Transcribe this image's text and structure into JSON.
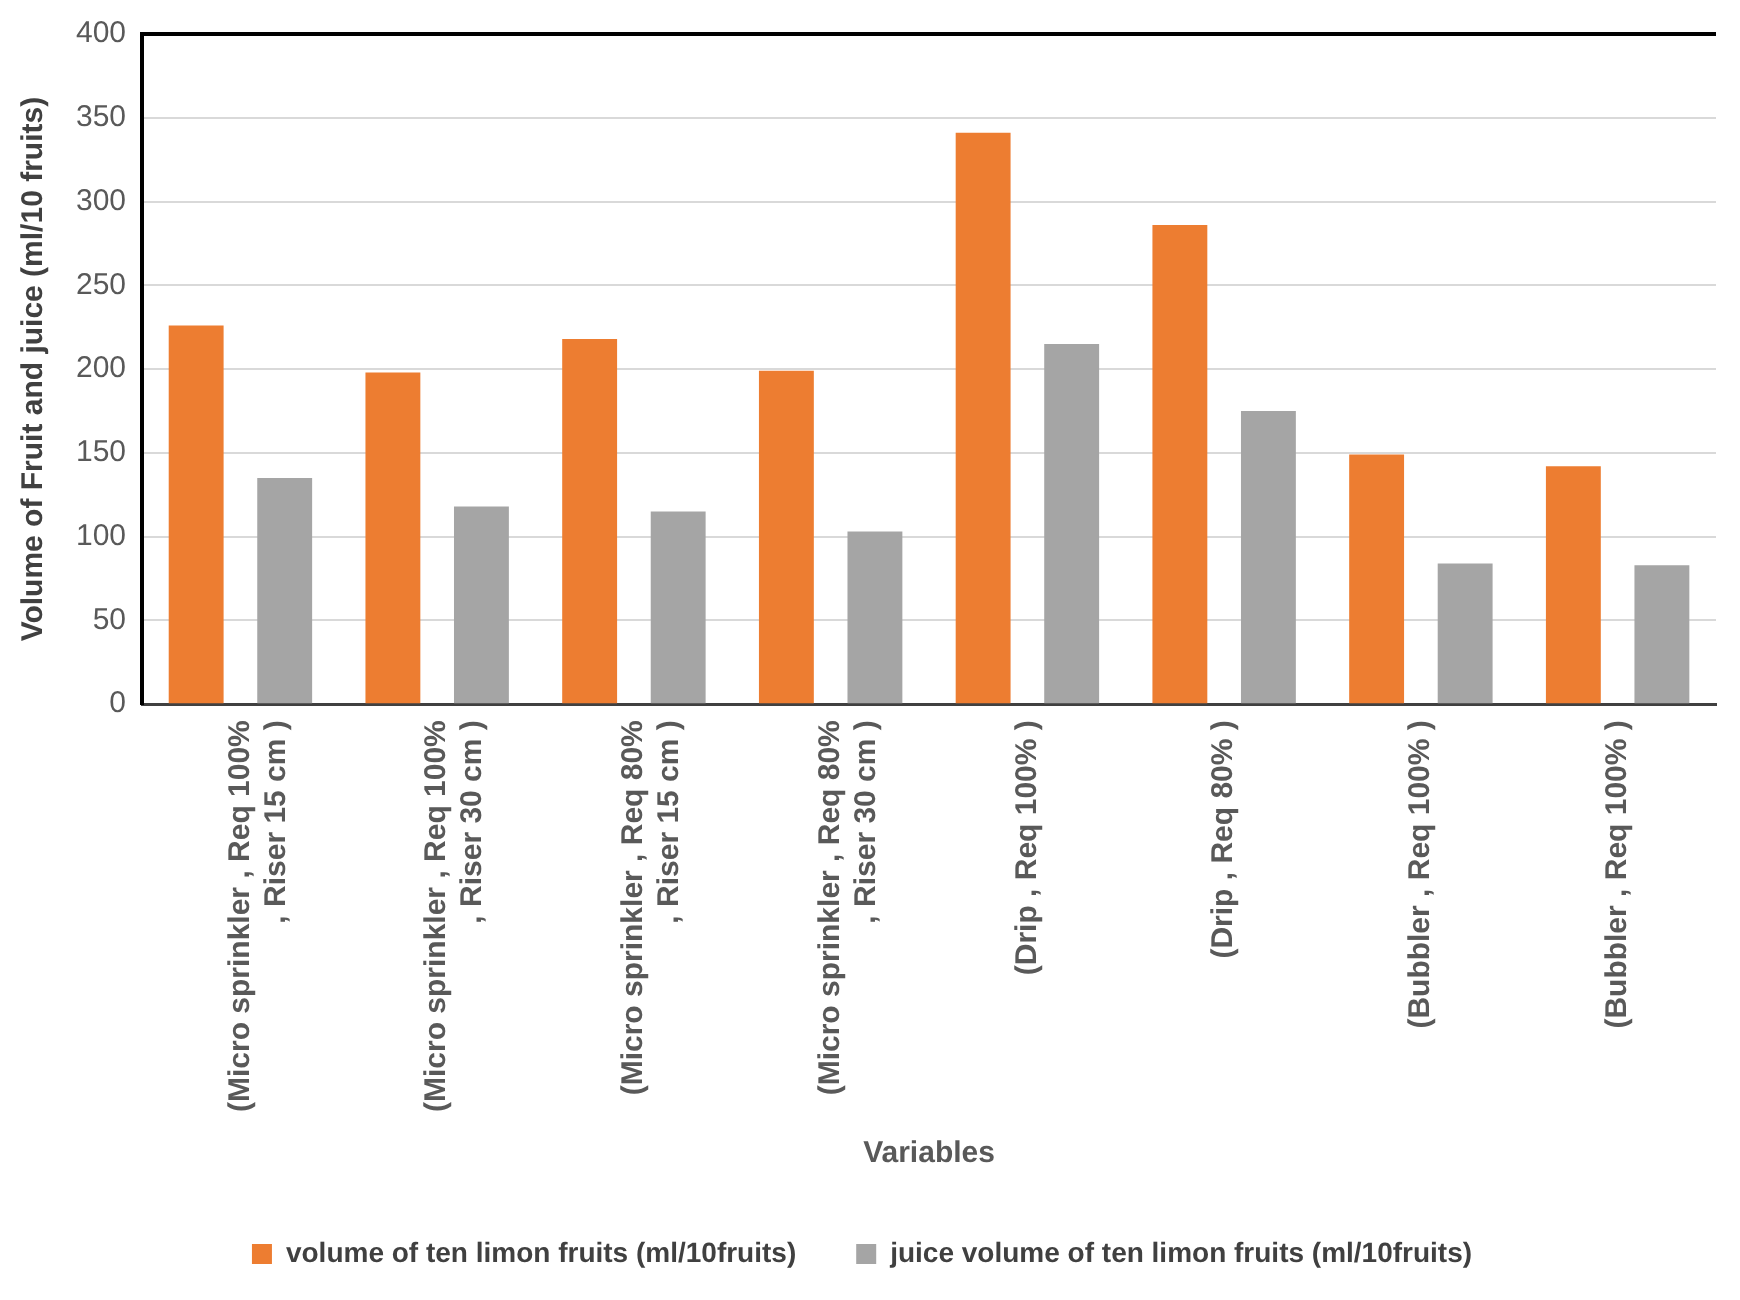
{
  "chart_data": {
    "type": "bar",
    "xlabel": "Variables",
    "ylabel": "Volume of Fruit and juice (ml/10 fruits)",
    "categories": [
      "(Micro sprinkler , Req 100% , Riser 15 cm )",
      "(Micro sprinkler , Req 100% , Riser 30 cm )",
      "(Micro sprinkler , Req 80% , Riser 15 cm )",
      "(Micro sprinkler , Req 80% , Riser 30 cm )",
      "(Drip , Req 100% )",
      "(Drip , Req 80% )",
      "(Bubbler , Req 100% )",
      "(Bubbler , Req 100% )"
    ],
    "series": [
      {
        "name": "volume of ten limon fruits (ml/10fruits)",
        "color": "#ed7d31",
        "values": [
          226,
          198,
          218,
          199,
          341,
          286,
          149,
          142
        ]
      },
      {
        "name": "juice volume of ten limon fruits (ml/10fruits)",
        "color": "#a5a5a5",
        "values": [
          135,
          118,
          115,
          103,
          215,
          175,
          84,
          83
        ]
      }
    ],
    "ylim": [
      0,
      400
    ],
    "yticks": [
      0,
      50,
      100,
      150,
      200,
      250,
      300,
      350,
      400
    ],
    "grid": "y",
    "legend": "bottom"
  }
}
